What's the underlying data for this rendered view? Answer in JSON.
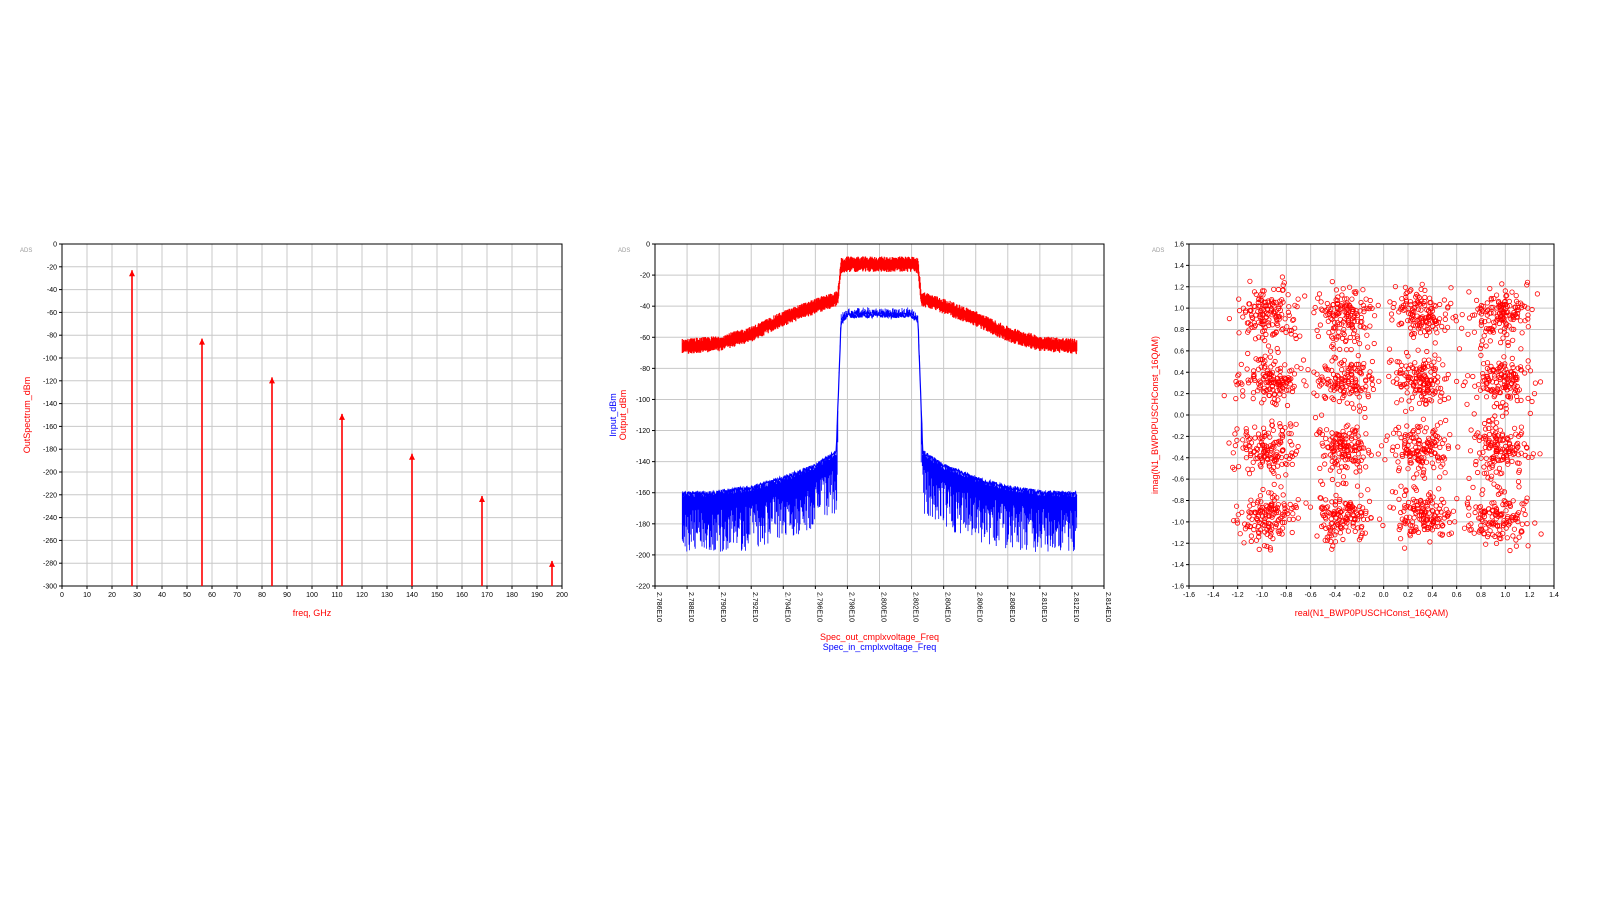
{
  "colors": {
    "red": "#ff0000",
    "blue": "#0000ff",
    "grid": "#c8c8c8",
    "ads": "#9a9a9a"
  },
  "chart_data": [
    {
      "type": "stem",
      "watermark": "ADS",
      "xlabel": "freq, GHz",
      "ylabel": "OutSpectrum_dBm",
      "xlim": [
        0,
        200
      ],
      "ylim": [
        -300,
        0
      ],
      "xticks": [
        0,
        10,
        20,
        30,
        40,
        50,
        60,
        70,
        80,
        90,
        100,
        110,
        120,
        130,
        140,
        150,
        160,
        170,
        180,
        190,
        200
      ],
      "yticks": [
        0,
        -20,
        -40,
        -60,
        -80,
        -100,
        -120,
        -140,
        -160,
        -180,
        -200,
        -220,
        -240,
        -260,
        -280,
        -300
      ],
      "grid": true,
      "series": [
        {
          "x": [
            28,
            56,
            84,
            112,
            140,
            168,
            196
          ],
          "y": [
            -23,
            -83,
            -117,
            -149,
            -184,
            -221,
            -278
          ]
        }
      ]
    },
    {
      "type": "line",
      "watermark": "ADS",
      "xlabel_lines": [
        "Spec_out_cmplxvoltage_Freq",
        "Spec_in_cmplxvoltage_Freq"
      ],
      "ylabel_lines": [
        "Input_dBm",
        "Output_dBm"
      ],
      "xlim": [
        27860000000.0,
        28140000000.0
      ],
      "ylim": [
        -220,
        0
      ],
      "xticks": [
        "2.786E10",
        "2.788E10",
        "2.790E10",
        "2.792E10",
        "2.794E10",
        "2.796E10",
        "2.798E10",
        "2.800E10",
        "2.802E10",
        "2.804E10",
        "2.806E10",
        "2.808E10",
        "2.810E10",
        "2.812E10",
        "2.814E10"
      ],
      "yticks": [
        0,
        -20,
        -40,
        -60,
        -80,
        -100,
        -120,
        -140,
        -160,
        -180,
        -200,
        -220
      ],
      "grid": true,
      "series": [
        {
          "color": "red",
          "x": [
            27877000000.0,
            27900000000.0,
            27920000000.0,
            27940000000.0,
            27960000000.0,
            27974000000.0,
            27976000000.0,
            27980000000.0,
            28000000000.0,
            28020000000.0,
            28024000000.0,
            28026000000.0,
            28040000000.0,
            28060000000.0,
            28080000000.0,
            28100000000.0,
            28123000000.0
          ],
          "y": [
            -66,
            -64,
            -58,
            -48,
            -40,
            -35,
            -14,
            -13,
            -13,
            -13,
            -14,
            -35,
            -40,
            -48,
            -58,
            -64,
            -66
          ]
        },
        {
          "color": "blue",
          "x": [
            27877000000.0,
            27900000000.0,
            27920000000.0,
            27940000000.0,
            27960000000.0,
            27973000000.0,
            27976000000.0,
            27980000000.0,
            28000000000.0,
            28020000000.0,
            28024000000.0,
            28027000000.0,
            28040000000.0,
            28060000000.0,
            28080000000.0,
            28100000000.0,
            28123000000.0
          ],
          "y": [
            -161,
            -160,
            -157,
            -151,
            -143,
            -134,
            -50,
            -46,
            -46,
            -46,
            -50,
            -134,
            -143,
            -151,
            -157,
            -160,
            -161
          ],
          "floor": -200
        }
      ]
    },
    {
      "type": "scatter",
      "watermark": "ADS",
      "xlabel": "real(N1_BWP0PUSCHConst_16QAM)",
      "ylabel": "imag(N1_BWP0PUSCHConst_16QAM)",
      "xlim": [
        -1.6,
        1.4
      ],
      "ylim": [
        -1.6,
        1.6
      ],
      "xticks": [
        -1.6,
        -1.4,
        -1.2,
        -1.0,
        -0.8,
        -0.6,
        -0.4,
        -0.2,
        0.0,
        0.2,
        0.4,
        0.6,
        0.8,
        1.0,
        1.2,
        1.4
      ],
      "yticks": [
        1.6,
        1.4,
        1.2,
        1.0,
        0.8,
        0.6,
        0.4,
        0.2,
        0.0,
        -0.2,
        -0.4,
        -0.6,
        -0.8,
        -1.0,
        -1.2,
        -1.4,
        -1.6
      ],
      "grid": true,
      "constellation": {
        "centers": [
          -0.95,
          -0.32,
          0.32,
          0.95
        ],
        "points_per_cluster": 150,
        "spread": 0.12
      }
    }
  ]
}
